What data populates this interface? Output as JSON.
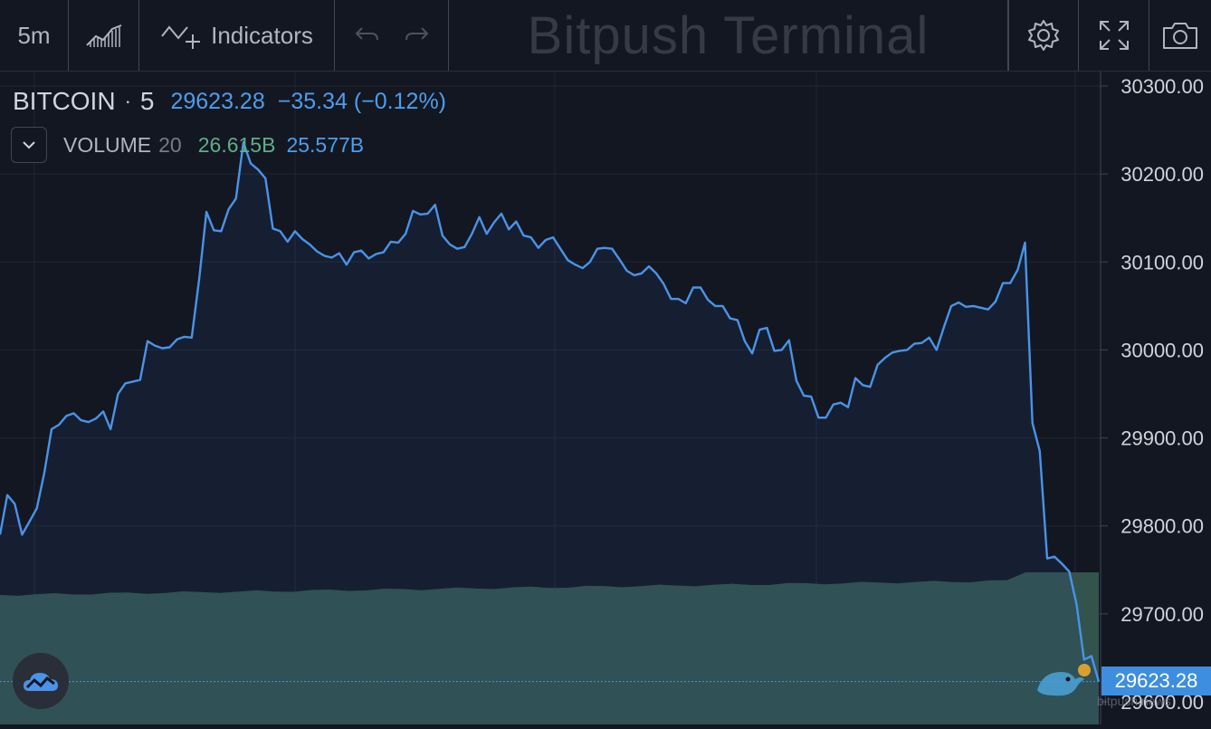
{
  "toolbar": {
    "interval": "5m",
    "indicators_label": "Indicators",
    "title": "Bitpush Terminal"
  },
  "legend": {
    "symbol": "BITCOIN",
    "interval": "5",
    "price": "29623.28",
    "change": "−35.34 (−0.12%)",
    "volume_name": "VOLUME",
    "volume_period": "20",
    "volume_value": "26.615B",
    "volume_ma": "25.577B"
  },
  "last_price_label": "29623.28",
  "watermark": "bitpush.news",
  "colors": {
    "line": "#4a93e8",
    "volume": "#33544d",
    "bg": "#131722"
  },
  "chart_data": {
    "type": "line",
    "ylim": [
      29570,
      30315
    ],
    "y_ticks": [
      "30300.00",
      "30200.00",
      "30100.00",
      "30000.00",
      "29900.00",
      "29800.00",
      "29700.00",
      "29600.00"
    ],
    "values": [
      29790,
      29835,
      29825,
      29790,
      29805,
      29820,
      29860,
      29910,
      29915,
      29925,
      29928,
      29920,
      29918,
      29922,
      29930,
      29910,
      29950,
      29962,
      29964,
      29966,
      30010,
      30005,
      30002,
      30003,
      30012,
      30015,
      30014,
      30080,
      30157,
      30136,
      30135,
      30160,
      30172,
      30236,
      30212,
      30205,
      30195,
      30138,
      30135,
      30123,
      30135,
      30126,
      30120,
      30112,
      30107,
      30105,
      30110,
      30097,
      30111,
      30113,
      30104,
      30109,
      30111,
      30123,
      30122,
      30132,
      30158,
      30154,
      30155,
      30165,
      30130,
      30120,
      30115,
      30117,
      30132,
      30151,
      30132,
      30145,
      30155,
      30137,
      30146,
      30130,
      30128,
      30116,
      30125,
      30128,
      30115,
      30102,
      30097,
      30093,
      30100,
      30115,
      30116,
      30115,
      30103,
      30090,
      30085,
      30087,
      30095,
      30087,
      30075,
      30058,
      30058,
      30053,
      30071,
      30071,
      30057,
      30050,
      30050,
      30036,
      30034,
      30010,
      29996,
      30023,
      30025,
      29999,
      30000,
      30011,
      29965,
      29948,
      29947,
      29923,
      29923,
      29938,
      29940,
      29935,
      29968,
      29960,
      29958,
      29983,
      29991,
      29997,
      29999,
      30000,
      30007,
      30008,
      30014,
      30000,
      30026,
      30050,
      30054,
      30049,
      30050,
      30048,
      30046,
      30055,
      30076,
      30076,
      30091,
      30122,
      29917,
      29885,
      29763,
      29765,
      29757,
      29748,
      29710,
      29648,
      29652,
      29623
    ],
    "volume_ma_ratio": 0.22
  }
}
